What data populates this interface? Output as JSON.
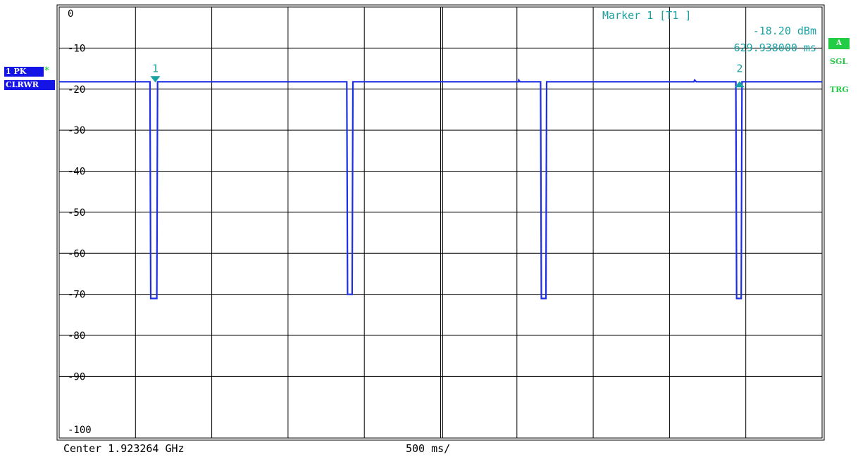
{
  "colors": {
    "trace": "#1e2ee6",
    "marker": "#1aa1a1",
    "grid": "#000000",
    "badge_blue": "#1414e6",
    "badge_green": "#22cc44"
  },
  "side_labels": {
    "trace_label": "1 PK",
    "trace_star": "*",
    "trace_mode": "CLRWR",
    "badge_a": "A",
    "sgl": "SGL",
    "trg": "TRG"
  },
  "marker_info": {
    "line1": "Marker 1 [T1 ]",
    "line2": "-18.20 dBm",
    "line3": "629.938000 ms"
  },
  "footer": {
    "center": "Center 1.923264 GHz",
    "span": "500 ms/"
  },
  "chart_data": {
    "type": "line",
    "title": "",
    "xlabel": "",
    "ylabel": "",
    "x_unit": "s",
    "xlim": [
      0,
      5
    ],
    "ylim": [
      -105,
      0
    ],
    "y_ticks": [
      0,
      -10,
      -20,
      -30,
      -40,
      -50,
      -60,
      -70,
      -80,
      -90,
      -100
    ],
    "y_tick_labels": [
      "0",
      "-10",
      "-20",
      "-30",
      "-40",
      "-50",
      "-60",
      "-70",
      "-80",
      "-90",
      "-100"
    ],
    "grid": true,
    "series": [
      {
        "x": [
          0,
          0.595,
          0.6,
          0.61,
          0.635,
          0.64,
          0.645,
          1.885,
          1.89,
          1.9,
          1.915,
          1.92,
          1.925,
          3.01,
          3.012,
          3.02,
          3.155,
          3.16,
          3.17,
          3.185,
          3.19,
          3.195,
          4.16,
          4.165,
          4.175,
          4.435,
          4.44,
          4.45,
          4.465,
          4.47,
          4.475,
          5
        ],
        "y": [
          -18.2,
          -18.2,
          -71,
          -71,
          -71,
          -71,
          -18.2,
          -18.2,
          -70,
          -70,
          -70,
          -70,
          -18.2,
          -18.2,
          -17.8,
          -18.2,
          -18.2,
          -71,
          -71,
          -71,
          -71,
          -18.2,
          -18.2,
          -17.8,
          -18.2,
          -18.2,
          -71,
          -71,
          -71,
          -71,
          -18.2,
          -18.2
        ]
      }
    ],
    "markers": [
      {
        "label": "1",
        "x": 0.63,
        "y": -18.2,
        "shape": "down"
      },
      {
        "label": "2",
        "x": 4.46,
        "y": -18.2,
        "shape": "up"
      }
    ]
  }
}
